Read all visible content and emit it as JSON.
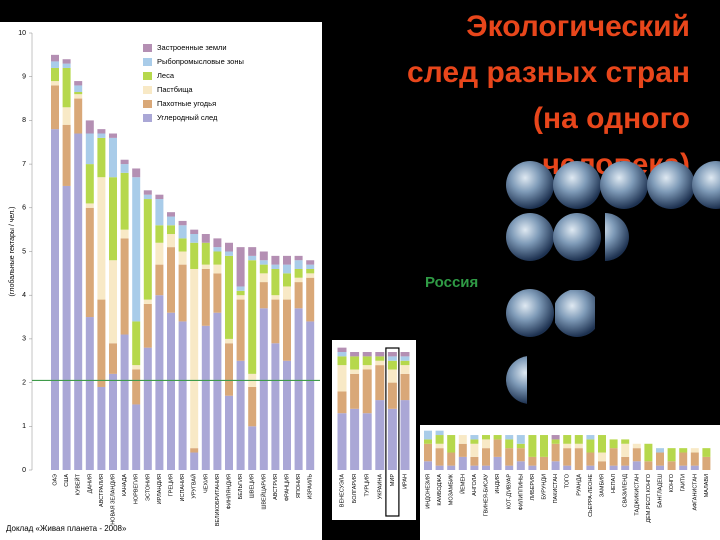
{
  "title_lines": [
    "Экологический",
    "след разных стран",
    "(на одного",
    "человека)"
  ],
  "russia_label": "Россия",
  "source": "Доклад «Живая планета - 2008»",
  "chart_data": [
    {
      "type": "stacked-bar",
      "ylabel": "(глобальные гектары / чел.)",
      "ylim": [
        0,
        10
      ],
      "yticks": [
        0,
        1,
        2,
        3,
        4,
        5,
        6,
        7,
        8,
        9,
        10
      ],
      "reference_line": 2.05,
      "reference_color": "#3f9b4a",
      "legend": "upper-right",
      "categories": [
        "ОАЭ",
        "США",
        "КУВЕЙТ",
        "ДАНИЯ",
        "АВСТРАЛИЯ",
        "НОВАЯ ЗЕЛАНДИЯ",
        "КАНАДА",
        "НОРВЕГИЯ",
        "ЭСТОНИЯ",
        "ИРЛАНДИЯ",
        "ГРЕЦИЯ",
        "ИСПАНИЯ",
        "УРУГВАЙ",
        "ЧЕХИЯ",
        "ВЕЛИКОБРИТАНИЯ",
        "ФИНЛЯНДИЯ",
        "БЕЛЬГИЯ",
        "ШВЕЦИЯ",
        "ШВЕЙЦАРИЯ",
        "АВСТРИЯ",
        "ФРАНЦИЯ",
        "ЯПОНИЯ",
        "ИЗРАИЛЬ"
      ],
      "series": [
        {
          "name": "Углеродный след",
          "color": "#aaa7d6",
          "values": [
            7.8,
            6.5,
            7.7,
            3.5,
            1.9,
            2.2,
            3.1,
            1.5,
            2.8,
            4.0,
            3.6,
            3.4,
            0.4,
            3.3,
            3.6,
            1.7,
            2.5,
            1.0,
            3.7,
            2.9,
            2.5,
            3.7,
            3.4
          ]
        },
        {
          "name": "Пахотные угодья",
          "color": "#d9a878",
          "values": [
            1.0,
            1.4,
            0.8,
            2.5,
            2.0,
            0.7,
            2.2,
            0.8,
            1.0,
            0.7,
            1.5,
            1.3,
            0.1,
            1.3,
            0.9,
            1.2,
            1.4,
            0.9,
            0.6,
            1.0,
            1.4,
            0.6,
            1.0
          ]
        },
        {
          "name": "Пастбища",
          "color": "#f8e9c6",
          "values": [
            0.1,
            0.4,
            0.1,
            0.1,
            2.8,
            1.9,
            0.2,
            0.1,
            0.1,
            0.5,
            0.3,
            0.3,
            4.1,
            0.1,
            0.2,
            0.1,
            0.1,
            0.3,
            0.2,
            0.1,
            0.3,
            0.1,
            0.1
          ]
        },
        {
          "name": "Леса",
          "color": "#b6d84c",
          "values": [
            0.3,
            0.9,
            0.05,
            0.9,
            0.9,
            1.9,
            1.3,
            1.0,
            2.3,
            0.4,
            0.2,
            0.3,
            0.6,
            0.5,
            0.3,
            1.9,
            0.1,
            2.6,
            0.2,
            0.6,
            0.3,
            0.2,
            0.1
          ]
        },
        {
          "name": "Рыбопромысловые зоны",
          "color": "#a9cce9",
          "values": [
            0.15,
            0.1,
            0.15,
            0.7,
            0.1,
            0.9,
            0.2,
            3.3,
            0.1,
            0.6,
            0.2,
            0.3,
            0.2,
            0.0,
            0.1,
            0.1,
            0.1,
            0.1,
            0.1,
            0.1,
            0.2,
            0.2,
            0.1
          ]
        },
        {
          "name": "Застроенные земли",
          "color": "#b48fb3",
          "values": [
            0.15,
            0.1,
            0.1,
            0.3,
            0.1,
            0.1,
            0.1,
            0.2,
            0.1,
            0.1,
            0.1,
            0.1,
            0.1,
            0.2,
            0.2,
            0.2,
            0.9,
            0.2,
            0.2,
            0.2,
            0.2,
            0.1,
            0.1
          ]
        }
      ]
    },
    {
      "type": "stacked-bar",
      "highlight_index": 4,
      "categories": [
        "ВЕНЕСУЭЛА",
        "БОЛГАРИЯ",
        "ТУРЦИЯ",
        "УКРАИНА",
        "МИР",
        "ИРАН"
      ],
      "series": [
        {
          "color": "#aaa7d6",
          "values": [
            1.3,
            1.4,
            1.3,
            1.6,
            1.4,
            1.6
          ]
        },
        {
          "color": "#d9a878",
          "values": [
            0.5,
            0.8,
            1.0,
            0.8,
            0.6,
            0.6
          ]
        },
        {
          "color": "#f8e9c6",
          "values": [
            0.6,
            0.1,
            0.1,
            0.1,
            0.3,
            0.2
          ]
        },
        {
          "color": "#b6d84c",
          "values": [
            0.2,
            0.3,
            0.2,
            0.1,
            0.2,
            0.1
          ]
        },
        {
          "color": "#a9cce9",
          "values": [
            0.1,
            0.0,
            0.0,
            0.0,
            0.1,
            0.1
          ]
        },
        {
          "color": "#b48fb3",
          "values": [
            0.1,
            0.1,
            0.1,
            0.1,
            0.1,
            0.1
          ]
        }
      ]
    },
    {
      "type": "stacked-bar",
      "categories": [
        "ИНДОНЕЗИЯ",
        "КАМБОДЖА",
        "МОЗАМБИК",
        "ЙЕМЕН",
        "АНГОЛА",
        "ГВИНЕЯ-БИСАУ",
        "ИНДИЯ",
        "КОТ-Д'ИВУАР",
        "ФИЛИППИНЫ",
        "ЛИБЕРИЯ",
        "БУРУНДИ",
        "ПАКИСТАН",
        "ТОГО",
        "РУАНДА",
        "СЬЕРРА-ЛЕОНЕ",
        "ЗАМБИЯ",
        "НЕПАЛ",
        "СВАЗИЛЕНД",
        "ТАДЖИКИСТАН",
        "ДЕМ.РЕСП.КОНГО",
        "БАНГЛАДЕШ",
        "КОНГО",
        "ГАИТИ",
        "АФГАНИСТАН",
        "МАЛАВИ"
      ],
      "series": [
        {
          "color": "#aaa7d6",
          "values": [
            0.2,
            0.1,
            0.1,
            0.3,
            0.1,
            0.1,
            0.3,
            0.1,
            0.2,
            0.1,
            0.0,
            0.2,
            0.1,
            0.0,
            0.1,
            0.0,
            0.1,
            0.1,
            0.2,
            0.0,
            0.1,
            0.0,
            0.1,
            0.1,
            0.0
          ]
        },
        {
          "color": "#d9a878",
          "values": [
            0.4,
            0.4,
            0.3,
            0.3,
            0.2,
            0.4,
            0.4,
            0.4,
            0.3,
            0.2,
            0.3,
            0.4,
            0.4,
            0.5,
            0.3,
            0.2,
            0.4,
            0.2,
            0.3,
            0.2,
            0.3,
            0.2,
            0.3,
            0.3,
            0.3
          ]
        },
        {
          "color": "#f8e9c6",
          "values": [
            0.0,
            0.1,
            0.0,
            0.2,
            0.3,
            0.2,
            0.0,
            0.0,
            0.0,
            0.0,
            0.0,
            0.0,
            0.1,
            0.1,
            0.0,
            0.2,
            0.0,
            0.3,
            0.1,
            0.0,
            0.0,
            0.0,
            0.0,
            0.1,
            0.0
          ]
        },
        {
          "color": "#b6d84c",
          "values": [
            0.1,
            0.2,
            0.4,
            0.0,
            0.1,
            0.1,
            0.1,
            0.2,
            0.1,
            0.5,
            0.5,
            0.1,
            0.2,
            0.2,
            0.3,
            0.4,
            0.2,
            0.1,
            0.0,
            0.4,
            0.0,
            0.3,
            0.1,
            0.0,
            0.2
          ]
        },
        {
          "color": "#a9cce9",
          "values": [
            0.2,
            0.1,
            0.0,
            0.0,
            0.1,
            0.0,
            0.0,
            0.1,
            0.2,
            0.0,
            0.0,
            0.0,
            0.0,
            0.0,
            0.1,
            0.0,
            0.0,
            0.0,
            0.0,
            0.0,
            0.1,
            0.0,
            0.0,
            0.0,
            0.0
          ]
        },
        {
          "color": "#b48fb3",
          "values": [
            0.0,
            0.0,
            0.0,
            0.0,
            0.0,
            0.0,
            0.0,
            0.0,
            0.0,
            0.0,
            0.0,
            0.1,
            0.0,
            0.0,
            0.0,
            0.0,
            0.0,
            0.0,
            0.0,
            0.0,
            0.0,
            0.0,
            0.0,
            0.0,
            0.0
          ]
        }
      ]
    }
  ]
}
